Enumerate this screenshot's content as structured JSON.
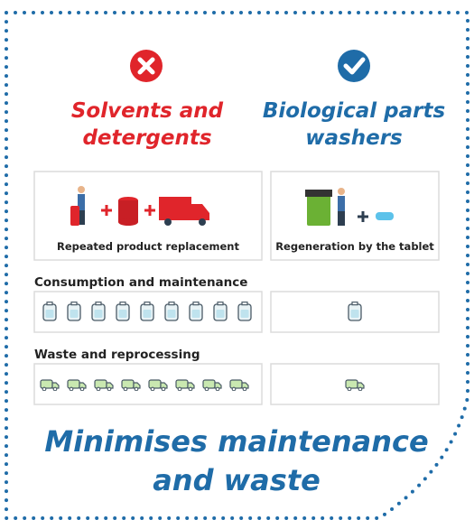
{
  "columns": [
    {
      "heading_lines": [
        "Solvents and",
        "detergents"
      ],
      "caption": "Repeated product replacement"
    },
    {
      "heading_lines": [
        "Biological parts",
        "washers"
      ],
      "caption": "Regeneration by the tablet"
    }
  ],
  "rows": [
    {
      "label": "Consumption and maintenance"
    },
    {
      "label": "Waste and reprocessing"
    }
  ],
  "footer": {
    "lines": [
      "Minimises maintenance",
      "and waste"
    ]
  }
}
